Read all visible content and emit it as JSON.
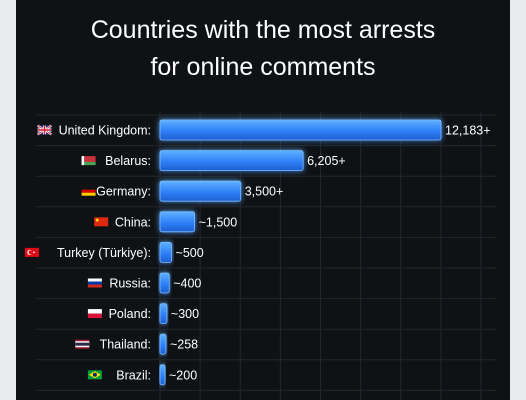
{
  "chart_data": {
    "type": "bar",
    "orientation": "horizontal",
    "title": "Countries with the most arrests for online comments",
    "title_lines": [
      "Countries with the most arrests",
      "for online comments"
    ],
    "xlim": [
      0,
      12183
    ],
    "grid": true,
    "categories": [
      {
        "label": "United Kingdom:",
        "flag": "uk-flag-icon",
        "value": 12183,
        "value_label": "12,183+"
      },
      {
        "label": "Belarus:",
        "flag": "belarus-flag-icon",
        "value": 6205,
        "value_label": "6,205+"
      },
      {
        "label": "Germany:",
        "flag": "germany-flag-icon",
        "value": 3500,
        "value_label": "3,500+"
      },
      {
        "label": "China:",
        "flag": "china-flag-icon",
        "value": 1500,
        "value_label": "~1,500"
      },
      {
        "label": "Turkey (Türkiye):",
        "flag": "turkey-flag-icon",
        "value": 500,
        "value_label": "~500"
      },
      {
        "label": "Russia:",
        "flag": "russia-flag-icon",
        "value": 400,
        "value_label": "~400"
      },
      {
        "label": "Poland:",
        "flag": "poland-flag-icon",
        "value": 300,
        "value_label": "~300"
      },
      {
        "label": "Thailand:",
        "flag": "thailand-flag-icon",
        "value": 258,
        "value_label": "~258"
      },
      {
        "label": "Brazil:",
        "flag": "brazil-flag-icon",
        "value": 200,
        "value_label": "~200"
      }
    ],
    "colors": {
      "background": "#0f1215",
      "bar": "#2f7ff7",
      "bar_highlight": "#5fb0ff",
      "grid": "#23272c",
      "text": "#ffffff"
    }
  }
}
